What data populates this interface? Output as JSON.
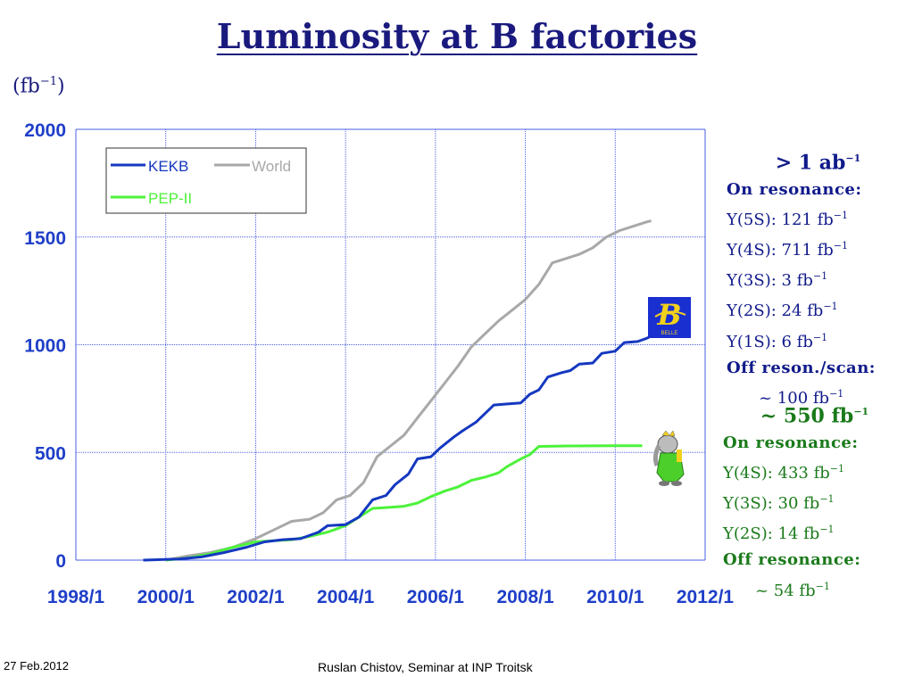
{
  "slide": {
    "title": "Luminosity at B factories",
    "unit_base": "(fb",
    "unit_exp": "−1",
    "unit_close": ")",
    "footer_date": "27 Feb.2012",
    "footer_author": "Ruslan Chistov, Seminar at INP Troitsk",
    "belle": {
      "logo_letter": "B",
      "logo_caption": "BELLE",
      "total_prefix": "> 1 ab",
      "total_exp": "−1",
      "on_resonance": "On resonance:",
      "lines": [
        {
          "label": "Υ(5S): 121 fb",
          "exp": "−1"
        },
        {
          "label": "Υ(4S): 711 fb",
          "exp": "−1"
        },
        {
          "label": "Υ(3S): 3 fb",
          "exp": "−1"
        },
        {
          "label": "Υ(2S): 24 fb",
          "exp": "−1"
        },
        {
          "label": "Υ(1S): 6 fb",
          "exp": "−1"
        }
      ],
      "off_label": "Off reson./scan:",
      "off_value": "~ 100 fb",
      "off_exp": "−1"
    },
    "babar": {
      "total_prefix": "~ 550 fb",
      "total_exp": "−1",
      "on_resonance": "On resonance:",
      "lines": [
        {
          "label": "Υ(4S): 433 fb",
          "exp": "−1"
        },
        {
          "label": "Υ(3S): 30 fb",
          "exp": "−1"
        },
        {
          "label": "Υ(2S): 14 fb",
          "exp": "−1"
        }
      ],
      "off_label": "Off resonance:",
      "off_value": "~ 54 fb",
      "off_exp": "−1"
    }
  },
  "colors": {
    "axis_text": "#1f3fc8",
    "grid": "#4a5fe0",
    "kekb": "#1538c0",
    "world": "#a8a8a8",
    "pep2": "#4cf23a",
    "belle_text": "#101a8a",
    "babar_text": "#1a7a1a"
  },
  "chart_data": {
    "type": "line",
    "x_ticks": [
      "1998/1",
      "2000/1",
      "2002/1",
      "2004/1",
      "2006/1",
      "2008/1",
      "2010/1",
      "2012/1"
    ],
    "y_ticks": [
      "0",
      "500",
      "1000",
      "1500",
      "2000"
    ],
    "xlim": [
      1998.0,
      2012.0
    ],
    "ylim": [
      0,
      2000
    ],
    "grid": true,
    "legend_position": "top-left",
    "series": [
      {
        "name": "KEKB",
        "color": "#1538c0",
        "points": [
          [
            1999.5,
            0
          ],
          [
            2000.3,
            5
          ],
          [
            2000.8,
            15
          ],
          [
            2001.3,
            35
          ],
          [
            2001.8,
            60
          ],
          [
            2002.2,
            85
          ],
          [
            2002.6,
            95
          ],
          [
            2003.0,
            100
          ],
          [
            2003.4,
            130
          ],
          [
            2003.6,
            160
          ],
          [
            2004.0,
            165
          ],
          [
            2004.3,
            200
          ],
          [
            2004.6,
            280
          ],
          [
            2004.9,
            300
          ],
          [
            2005.1,
            350
          ],
          [
            2005.4,
            400
          ],
          [
            2005.6,
            470
          ],
          [
            2005.9,
            480
          ],
          [
            2006.1,
            520
          ],
          [
            2006.4,
            570
          ],
          [
            2006.6,
            600
          ],
          [
            2006.9,
            640
          ],
          [
            2007.1,
            680
          ],
          [
            2007.3,
            720
          ],
          [
            2007.6,
            725
          ],
          [
            2007.9,
            730
          ],
          [
            2008.1,
            770
          ],
          [
            2008.3,
            790
          ],
          [
            2008.5,
            850
          ],
          [
            2008.8,
            870
          ],
          [
            2009.0,
            880
          ],
          [
            2009.2,
            910
          ],
          [
            2009.5,
            915
          ],
          [
            2009.7,
            960
          ],
          [
            2010.0,
            970
          ],
          [
            2010.2,
            1010
          ],
          [
            2010.5,
            1015
          ],
          [
            2010.7,
            1030
          ],
          [
            2010.8,
            1040
          ]
        ]
      },
      {
        "name": "World",
        "color": "#a8a8a8",
        "points": [
          [
            2000.0,
            0
          ],
          [
            2000.5,
            20
          ],
          [
            2001.0,
            35
          ],
          [
            2001.5,
            60
          ],
          [
            2002.0,
            100
          ],
          [
            2002.4,
            140
          ],
          [
            2002.8,
            180
          ],
          [
            2003.2,
            190
          ],
          [
            2003.5,
            220
          ],
          [
            2003.8,
            280
          ],
          [
            2004.1,
            300
          ],
          [
            2004.4,
            360
          ],
          [
            2004.7,
            480
          ],
          [
            2005.0,
            530
          ],
          [
            2005.3,
            580
          ],
          [
            2005.6,
            660
          ],
          [
            2005.9,
            740
          ],
          [
            2006.2,
            820
          ],
          [
            2006.5,
            900
          ],
          [
            2006.8,
            990
          ],
          [
            2007.1,
            1050
          ],
          [
            2007.4,
            1110
          ],
          [
            2007.7,
            1160
          ],
          [
            2008.0,
            1210
          ],
          [
            2008.3,
            1280
          ],
          [
            2008.6,
            1380
          ],
          [
            2008.9,
            1400
          ],
          [
            2009.2,
            1420
          ],
          [
            2009.5,
            1450
          ],
          [
            2009.8,
            1500
          ],
          [
            2010.1,
            1530
          ],
          [
            2010.4,
            1550
          ],
          [
            2010.7,
            1570
          ],
          [
            2010.8,
            1575
          ]
        ]
      },
      {
        "name": "PEP-II",
        "color": "#4cf23a",
        "points": [
          [
            2000.0,
            0
          ],
          [
            2000.5,
            10
          ],
          [
            2001.0,
            30
          ],
          [
            2001.5,
            60
          ],
          [
            2002.0,
            85
          ],
          [
            2002.4,
            90
          ],
          [
            2002.8,
            95
          ],
          [
            2003.2,
            110
          ],
          [
            2003.6,
            130
          ],
          [
            2004.0,
            160
          ],
          [
            2004.3,
            200
          ],
          [
            2004.6,
            240
          ],
          [
            2005.0,
            245
          ],
          [
            2005.3,
            250
          ],
          [
            2005.6,
            265
          ],
          [
            2005.9,
            295
          ],
          [
            2006.2,
            320
          ],
          [
            2006.5,
            340
          ],
          [
            2006.8,
            370
          ],
          [
            2007.1,
            385
          ],
          [
            2007.4,
            405
          ],
          [
            2007.6,
            435
          ],
          [
            2007.9,
            470
          ],
          [
            2008.1,
            490
          ],
          [
            2008.3,
            528
          ],
          [
            2009.0,
            530
          ],
          [
            2010.0,
            531
          ],
          [
            2010.6,
            531
          ]
        ]
      }
    ]
  }
}
